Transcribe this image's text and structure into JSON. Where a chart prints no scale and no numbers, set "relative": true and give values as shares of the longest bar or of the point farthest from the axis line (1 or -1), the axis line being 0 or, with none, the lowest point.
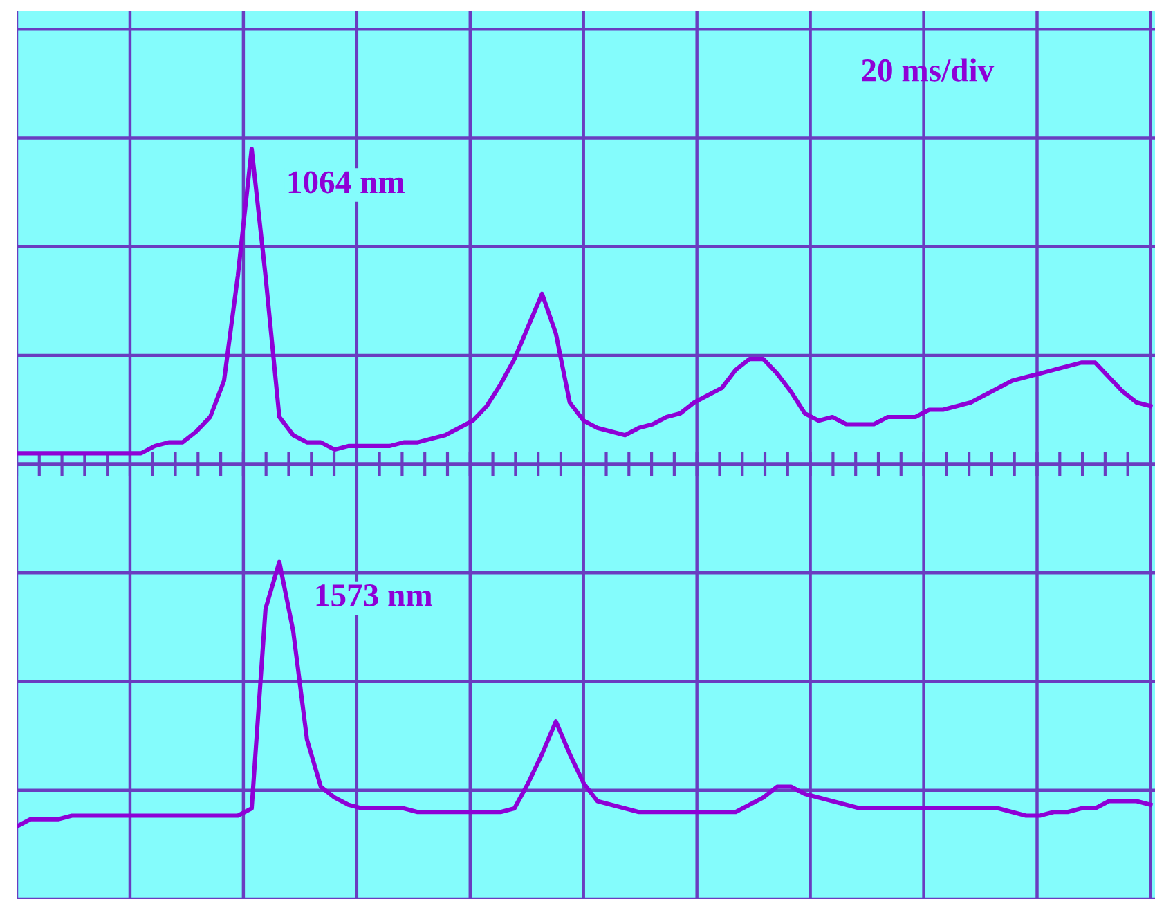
{
  "chart_data": {
    "type": "line",
    "relative": true,
    "grid": true,
    "tick_labels": false,
    "legend": false,
    "ref_lines": [
      {
        "axis": "y",
        "value": 0
      }
    ],
    "categories": [
      null,
      null,
      null,
      null,
      null,
      null,
      null,
      null,
      null,
      null,
      null,
      null,
      null,
      null,
      null,
      null,
      null,
      null,
      null,
      null,
      null,
      null,
      null,
      null,
      null,
      null,
      null,
      null,
      null,
      null,
      null,
      null,
      null,
      null,
      null,
      null,
      null,
      null,
      null,
      null,
      null,
      null,
      null,
      null,
      null,
      null,
      null,
      null,
      null,
      null,
      null,
      null,
      null,
      null,
      null,
      null,
      null,
      null,
      null,
      null,
      null,
      null,
      null,
      null,
      null,
      null,
      null,
      null,
      null,
      null,
      null,
      null,
      null,
      null,
      null,
      null,
      null,
      null,
      null,
      null,
      null,
      null,
      null
    ],
    "series": [
      {
        "name": "1064 nm",
        "color": "#8e00d6",
        "values": [
          0.03,
          0.03,
          0.03,
          0.03,
          0.03,
          0.03,
          0.03,
          0.03,
          0.03,
          0.03,
          0.05,
          0.06,
          0.06,
          0.09,
          0.13,
          0.23,
          0.52,
          0.87,
          0.52,
          0.13,
          0.08,
          0.06,
          0.06,
          0.04,
          0.05,
          0.05,
          0.05,
          0.05,
          0.06,
          0.06,
          0.07,
          0.08,
          0.1,
          0.12,
          0.16,
          0.22,
          0.29,
          0.38,
          0.47,
          0.36,
          0.17,
          0.12,
          0.1,
          0.09,
          0.08,
          0.1,
          0.11,
          0.13,
          0.14,
          0.17,
          0.19,
          0.21,
          0.26,
          0.29,
          0.29,
          0.25,
          0.2,
          0.14,
          0.12,
          0.13,
          0.11,
          0.11,
          0.11,
          0.13,
          0.13,
          0.13,
          0.15,
          0.15,
          0.16,
          0.17,
          0.19,
          0.21,
          0.23,
          0.24,
          0.25,
          0.26,
          0.27,
          0.28,
          0.28,
          0.24,
          0.2,
          0.17,
          0.16
        ]
      },
      {
        "name": "1573 nm",
        "color": "#8e00d6",
        "values": [
          -1.0,
          -0.98,
          -0.98,
          -0.98,
          -0.97,
          -0.97,
          -0.97,
          -0.97,
          -0.97,
          -0.97,
          -0.97,
          -0.97,
          -0.97,
          -0.97,
          -0.97,
          -0.97,
          -0.97,
          -0.95,
          -0.4,
          -0.27,
          -0.46,
          -0.76,
          -0.89,
          -0.92,
          -0.94,
          -0.95,
          -0.95,
          -0.95,
          -0.95,
          -0.96,
          -0.96,
          -0.96,
          -0.96,
          -0.96,
          -0.96,
          -0.96,
          -0.95,
          -0.88,
          -0.8,
          -0.71,
          -0.8,
          -0.88,
          -0.93,
          -0.94,
          -0.95,
          -0.96,
          -0.96,
          -0.96,
          -0.96,
          -0.96,
          -0.96,
          -0.96,
          -0.96,
          -0.94,
          -0.92,
          -0.89,
          -0.89,
          -0.91,
          -0.92,
          -0.93,
          -0.94,
          -0.95,
          -0.95,
          -0.95,
          -0.95,
          -0.95,
          -0.95,
          -0.95,
          -0.95,
          -0.95,
          -0.95,
          -0.95,
          -0.96,
          -0.97,
          -0.97,
          -0.96,
          -0.96,
          -0.95,
          -0.95,
          -0.93,
          -0.93,
          -0.93,
          -0.94
        ]
      }
    ],
    "annotations": [
      "20 ms/div"
    ]
  }
}
